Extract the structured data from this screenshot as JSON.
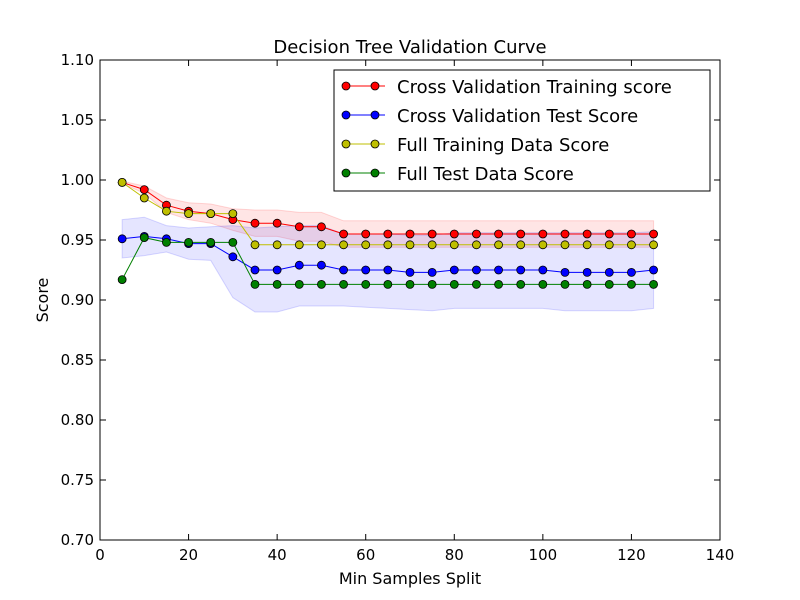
{
  "chart_data": {
    "type": "line",
    "title": "Decision Tree Validation Curve",
    "xlabel": "Min Samples Split",
    "ylabel": "Score",
    "xlim": [
      0,
      140
    ],
    "ylim": [
      0.7,
      1.1
    ],
    "xticks": [
      0,
      20,
      40,
      60,
      80,
      100,
      120,
      140
    ],
    "xtick_labels": [
      "0",
      "20",
      "40",
      "60",
      "80",
      "100",
      "120",
      "140"
    ],
    "yticks": [
      0.7,
      0.75,
      0.8,
      0.85,
      0.9,
      0.95,
      1.0,
      1.05,
      1.1
    ],
    "ytick_labels": [
      "0.70",
      "0.75",
      "0.80",
      "0.85",
      "0.90",
      "0.95",
      "1.00",
      "1.05",
      "1.10"
    ],
    "grid": false,
    "legend_position": "upper-right",
    "x": [
      5,
      10,
      15,
      20,
      25,
      30,
      35,
      40,
      45,
      50,
      55,
      60,
      65,
      70,
      75,
      80,
      85,
      90,
      95,
      100,
      105,
      110,
      115,
      120,
      125
    ],
    "series": [
      {
        "name": "Cross Validation Training score",
        "color": "#ff0000",
        "values": [
          0.998,
          0.992,
          0.979,
          0.974,
          0.972,
          0.967,
          0.964,
          0.964,
          0.961,
          0.961,
          0.955,
          0.955,
          0.955,
          0.955,
          0.955,
          0.955,
          0.955,
          0.955,
          0.955,
          0.955,
          0.955,
          0.955,
          0.955,
          0.955,
          0.955
        ],
        "band_upper": [
          0.999,
          0.995,
          0.985,
          0.981,
          0.98,
          0.976,
          0.975,
          0.975,
          0.973,
          0.973,
          0.966,
          0.966,
          0.966,
          0.966,
          0.966,
          0.966,
          0.966,
          0.966,
          0.966,
          0.966,
          0.966,
          0.966,
          0.966,
          0.966,
          0.966
        ],
        "band_lower": [
          0.997,
          0.989,
          0.973,
          0.967,
          0.964,
          0.958,
          0.953,
          0.953,
          0.949,
          0.949,
          0.944,
          0.944,
          0.944,
          0.944,
          0.944,
          0.944,
          0.944,
          0.944,
          0.944,
          0.944,
          0.944,
          0.944,
          0.944,
          0.944,
          0.944
        ],
        "band_color": "#ff0000"
      },
      {
        "name": "Cross Validation Test Score",
        "color": "#0000ff",
        "values": [
          0.951,
          0.953,
          0.951,
          0.947,
          0.947,
          0.936,
          0.925,
          0.925,
          0.929,
          0.929,
          0.925,
          0.925,
          0.925,
          0.923,
          0.923,
          0.925,
          0.925,
          0.925,
          0.925,
          0.925,
          0.923,
          0.923,
          0.923,
          0.923,
          0.925
        ],
        "band_upper": [
          0.967,
          0.969,
          0.962,
          0.96,
          0.961,
          0.962,
          0.96,
          0.961,
          0.962,
          0.962,
          0.955,
          0.955,
          0.955,
          0.954,
          0.954,
          0.956,
          0.956,
          0.956,
          0.956,
          0.956,
          0.956,
          0.956,
          0.956,
          0.956,
          0.957
        ],
        "band_lower": [
          0.935,
          0.937,
          0.94,
          0.934,
          0.933,
          0.902,
          0.89,
          0.89,
          0.895,
          0.895,
          0.895,
          0.894,
          0.893,
          0.892,
          0.891,
          0.893,
          0.893,
          0.893,
          0.893,
          0.893,
          0.891,
          0.891,
          0.891,
          0.891,
          0.893
        ],
        "band_color": "#0000ff"
      },
      {
        "name": "Full Training Data Score",
        "color": "#bfbf00",
        "values": [
          0.998,
          0.985,
          0.974,
          0.972,
          0.972,
          0.972,
          0.946,
          0.946,
          0.946,
          0.946,
          0.946,
          0.946,
          0.946,
          0.946,
          0.946,
          0.946,
          0.946,
          0.946,
          0.946,
          0.946,
          0.946,
          0.946,
          0.946,
          0.946,
          0.946
        ]
      },
      {
        "name": "Full Test Data Score",
        "color": "#008000",
        "values": [
          0.917,
          0.952,
          0.948,
          0.948,
          0.948,
          0.948,
          0.913,
          0.913,
          0.913,
          0.913,
          0.913,
          0.913,
          0.913,
          0.913,
          0.913,
          0.913,
          0.913,
          0.913,
          0.913,
          0.913,
          0.913,
          0.913,
          0.913,
          0.913,
          0.913
        ]
      }
    ]
  }
}
